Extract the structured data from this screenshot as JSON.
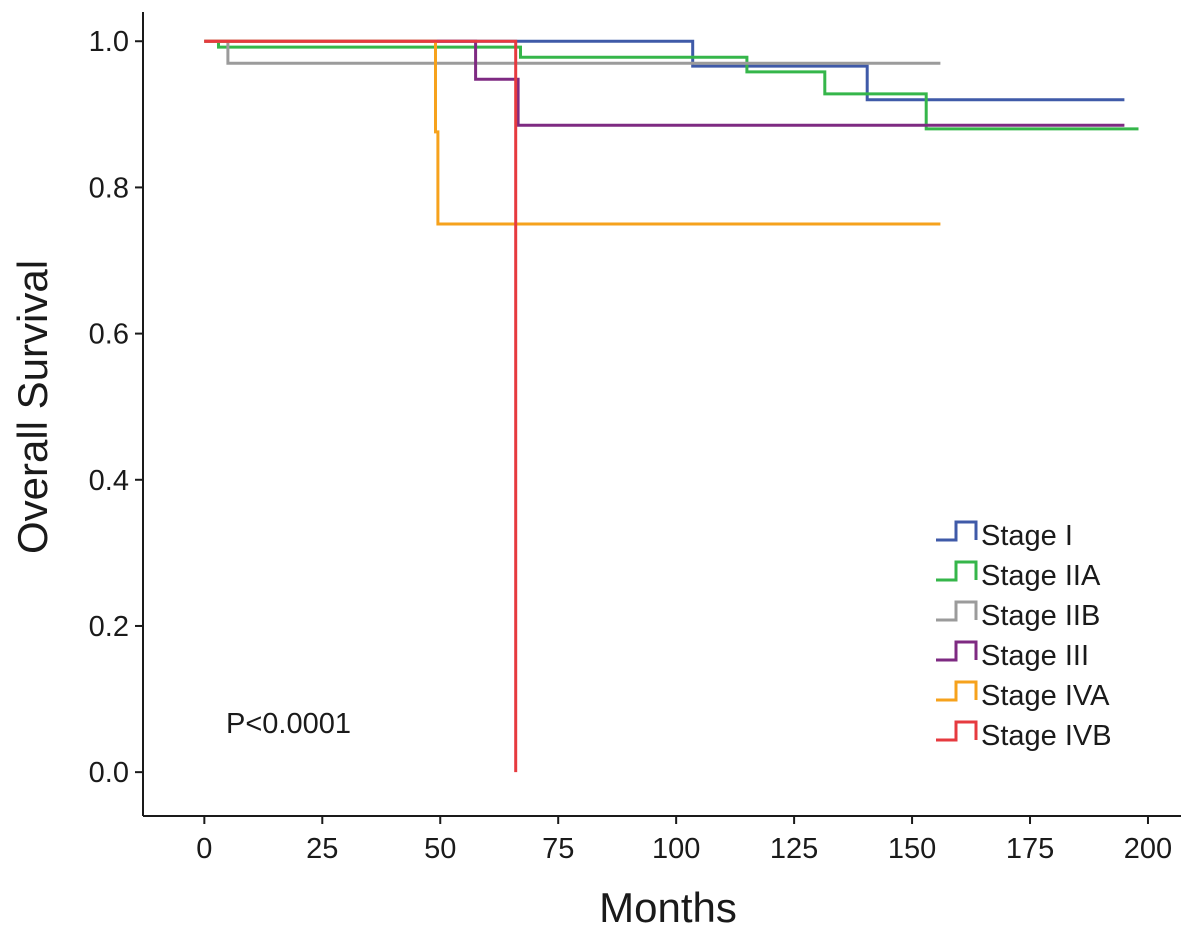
{
  "chart_data": {
    "type": "line",
    "step": true,
    "xlabel": "Months",
    "ylabel": "Overall Survival",
    "xlim": [
      -13,
      207
    ],
    "ylim": [
      -0.06,
      1.04
    ],
    "xticks": [
      0,
      25,
      50,
      75,
      100,
      125,
      150,
      175,
      200
    ],
    "yticks": [
      0.0,
      0.2,
      0.4,
      0.6,
      0.8,
      1.0
    ],
    "xtick_labels": [
      "0",
      "25",
      "50",
      "75",
      "100",
      "125",
      "150",
      "175",
      "200"
    ],
    "ytick_labels": [
      "0.0",
      "0.2",
      "0.4",
      "0.6",
      "0.8",
      "1.0"
    ],
    "annotation": "P<0.0001",
    "legend_position": "lower-right",
    "grid": false,
    "series": [
      {
        "name": "Stage I",
        "color": "#3f5aa8",
        "points": [
          [
            0,
            1.0
          ],
          [
            103.5,
            1.0
          ],
          [
            103.5,
            0.966
          ],
          [
            140.5,
            0.966
          ],
          [
            140.5,
            0.92
          ],
          [
            195,
            0.92
          ]
        ]
      },
      {
        "name": "Stage IIA",
        "color": "#35b64a",
        "points": [
          [
            3,
            1.0
          ],
          [
            3,
            0.992
          ],
          [
            67,
            0.992
          ],
          [
            67,
            0.978
          ],
          [
            115,
            0.978
          ],
          [
            115,
            0.958
          ],
          [
            131.5,
            0.958
          ],
          [
            131.5,
            0.928
          ],
          [
            153,
            0.928
          ],
          [
            153,
            0.88
          ],
          [
            198,
            0.88
          ]
        ]
      },
      {
        "name": "Stage IIB",
        "color": "#9b9b9b",
        "points": [
          [
            0,
            1.0
          ],
          [
            5,
            1.0
          ],
          [
            5,
            0.97
          ],
          [
            156,
            0.97
          ]
        ]
      },
      {
        "name": "Stage III",
        "color": "#7e2a82",
        "points": [
          [
            0,
            1.0
          ],
          [
            57.5,
            1.0
          ],
          [
            57.5,
            0.948
          ],
          [
            66.5,
            0.948
          ],
          [
            66.5,
            0.885
          ],
          [
            195,
            0.885
          ]
        ]
      },
      {
        "name": "Stage IVA",
        "color": "#f6a21c",
        "points": [
          [
            0,
            1.0
          ],
          [
            49,
            1.0
          ],
          [
            49,
            0.876
          ],
          [
            49.5,
            0.876
          ],
          [
            49.5,
            0.75
          ],
          [
            156,
            0.75
          ]
        ]
      },
      {
        "name": "Stage IVB",
        "color": "#e63a3f",
        "points": [
          [
            0,
            1.0
          ],
          [
            66,
            1.0
          ],
          [
            66,
            0.0
          ]
        ]
      }
    ]
  }
}
